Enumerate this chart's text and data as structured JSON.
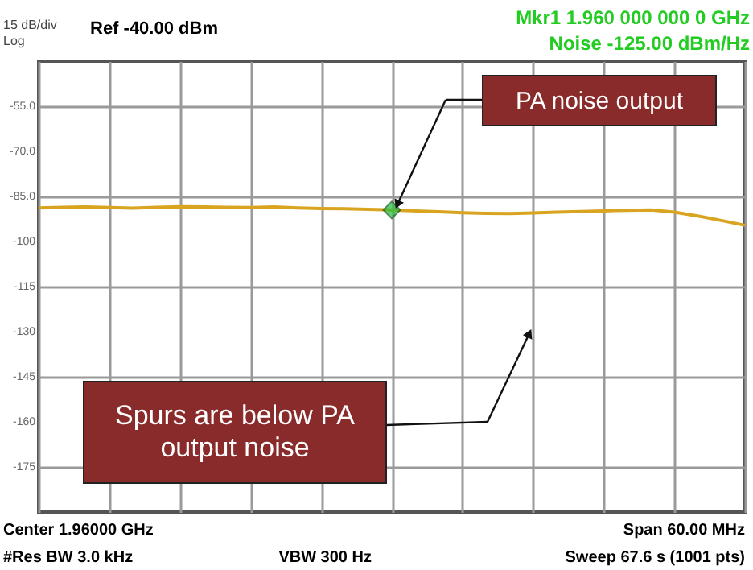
{
  "chart_data": {
    "type": "line",
    "categories": [
      null,
      null,
      null,
      null,
      null,
      null,
      null,
      null,
      null,
      null,
      null,
      null,
      null,
      null,
      null,
      null,
      null,
      null,
      null,
      null,
      null,
      null,
      null,
      null,
      null,
      null,
      null,
      null,
      null,
      null,
      null
    ],
    "series": [
      {
        "color": "#d9a521",
        "values": [
          -88.8,
          -88.6,
          -88.5,
          -88.7,
          -88.9,
          -88.6,
          -88.4,
          -88.5,
          -88.6,
          -88.7,
          -88.5,
          -88.8,
          -89.0,
          -89.1,
          -89.3,
          -89.5,
          -89.8,
          -90.1,
          -90.4,
          -90.6,
          -90.7,
          -90.5,
          -90.2,
          -90.0,
          -89.8,
          -89.6,
          -89.5,
          -90.2,
          -91.5,
          -93.0,
          -94.6
        ]
      }
    ],
    "ylim": [
      -190,
      -40
    ],
    "yticks": [
      {
        "value": -55,
        "label": "-55.0"
      },
      {
        "value": -70,
        "label": "-70.0"
      },
      {
        "value": -85,
        "label": "-85.0"
      },
      -100,
      -115,
      -130,
      -145,
      -160,
      -175
    ],
    "tick_labels": "y",
    "grid": true,
    "annotations": [
      "15 dB/div",
      "Log",
      "Ref -40.00 dBm",
      "Mkr1 1.960 000 000 0 GHz",
      "Noise -125.00 dBm/Hz",
      "Center 1.96000 GHz",
      "#Res BW 3.0 kHz",
      "VBW 300 Hz",
      "Span 60.00 MHz",
      "Sweep  67.6 s (1001 pts)",
      "PA noise output",
      "Spurs are below PA output noise"
    ]
  }
}
